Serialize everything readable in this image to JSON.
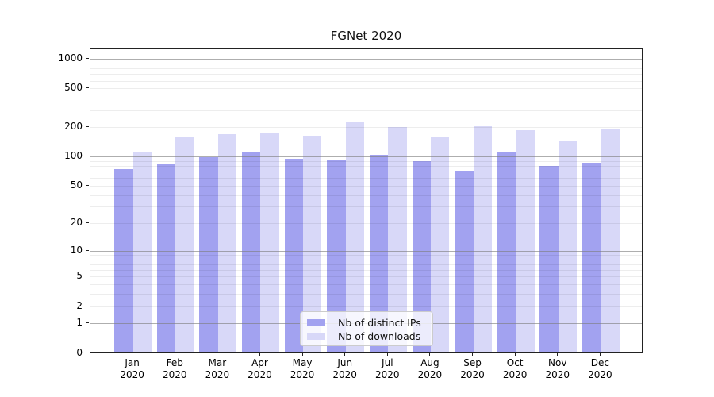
{
  "chart_data": {
    "type": "bar",
    "title": "FGNet 2020",
    "xlabel": "",
    "ylabel": "",
    "yscale": "log1p",
    "ylim": [
      0,
      1270
    ],
    "yticks": [
      0,
      1,
      2,
      5,
      10,
      20,
      50,
      100,
      200,
      500,
      1000
    ],
    "grid": {
      "major_color": "#7d7d7d",
      "minor_color": "#ececec",
      "grid_above_bars": true
    },
    "legend_position": "lower-center",
    "categories": [
      {
        "month": "Jan",
        "year": "2020"
      },
      {
        "month": "Feb",
        "year": "2020"
      },
      {
        "month": "Mar",
        "year": "2020"
      },
      {
        "month": "Apr",
        "year": "2020"
      },
      {
        "month": "May",
        "year": "2020"
      },
      {
        "month": "Jun",
        "year": "2020"
      },
      {
        "month": "Jul",
        "year": "2020"
      },
      {
        "month": "Aug",
        "year": "2020"
      },
      {
        "month": "Sep",
        "year": "2020"
      },
      {
        "month": "Oct",
        "year": "2020"
      },
      {
        "month": "Nov",
        "year": "2020"
      },
      {
        "month": "Dec",
        "year": "2020"
      }
    ],
    "series": [
      {
        "name": "Nb of distinct IPs",
        "color": "#a2a2f0",
        "values": [
          72,
          81,
          95,
          109,
          92,
          90,
          101,
          87,
          70,
          110,
          78,
          84
        ]
      },
      {
        "name": "Nb of downloads",
        "color": "#d8d8f8",
        "values": [
          107,
          156,
          165,
          170,
          158,
          220,
          196,
          152,
          198,
          182,
          143,
          184
        ]
      }
    ]
  }
}
